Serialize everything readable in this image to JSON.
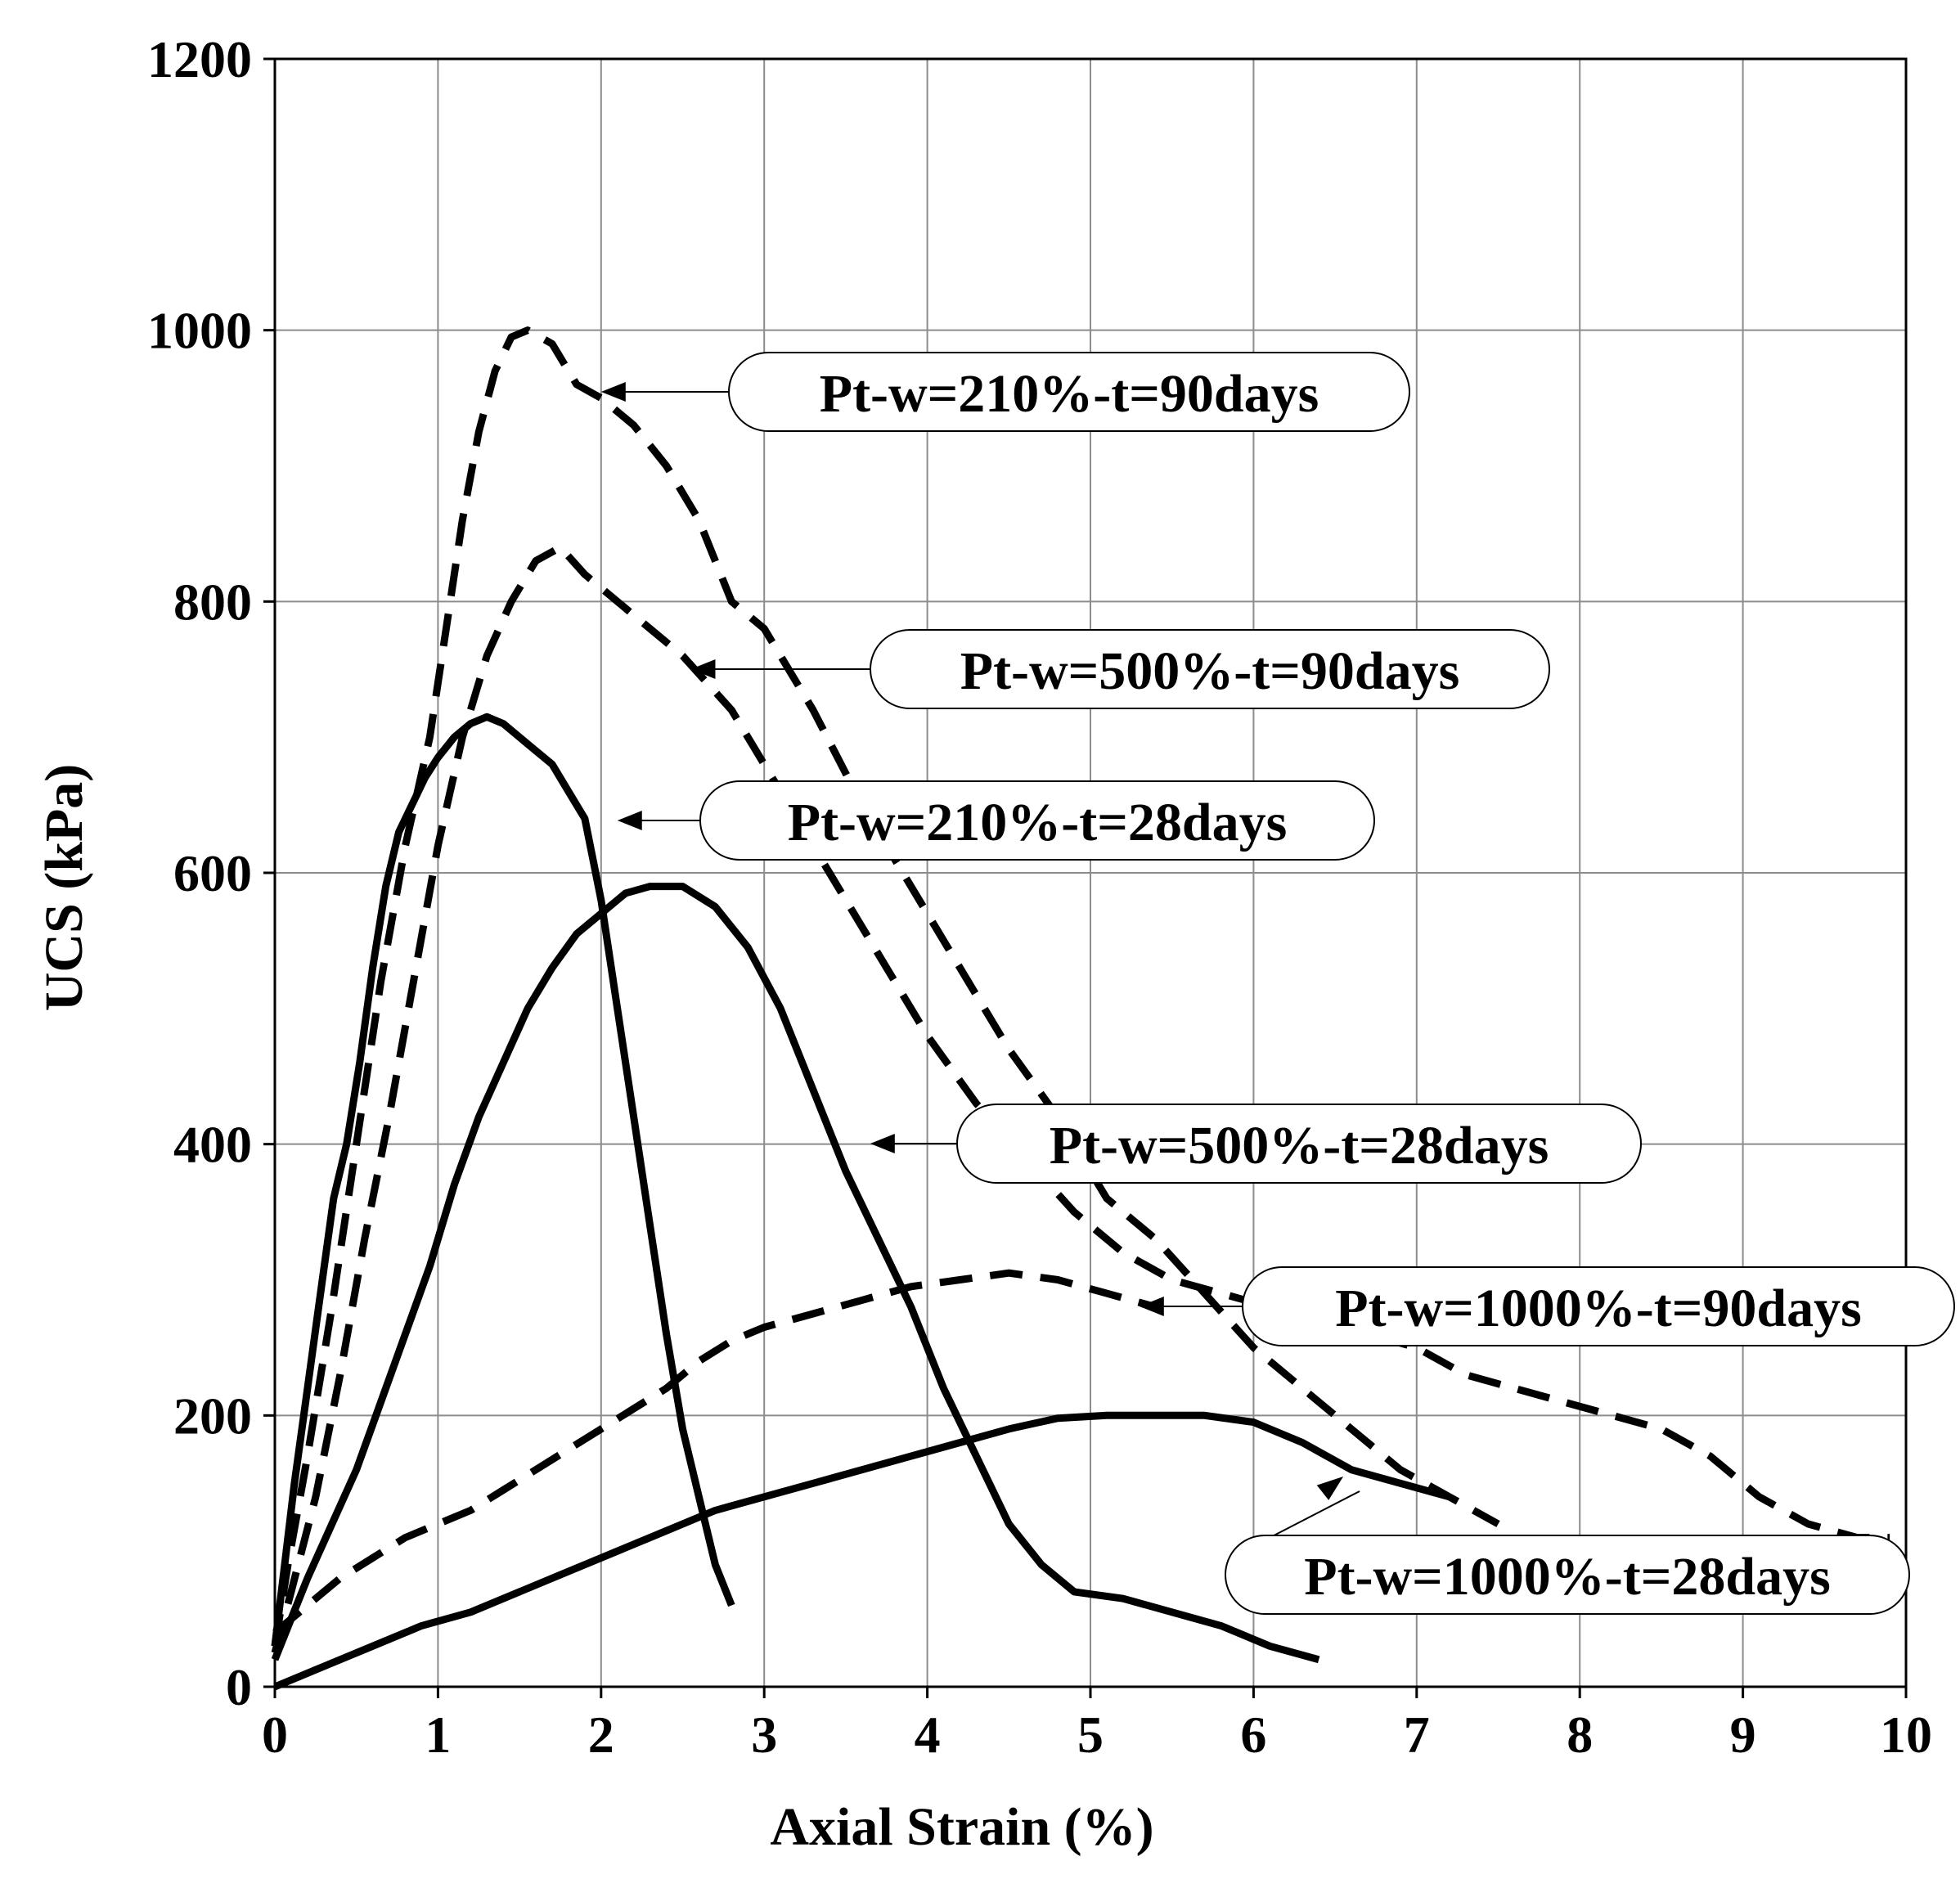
{
  "chart_data": {
    "type": "line",
    "title": "",
    "xlabel": "Axial Strain (%)",
    "ylabel": "UCS (kPa)",
    "xlim": [
      0,
      10
    ],
    "ylim": [
      0,
      1200
    ],
    "grid": true,
    "xticks": [
      "0",
      "1",
      "2",
      "3",
      "4",
      "5",
      "6",
      "7",
      "8",
      "9",
      "10"
    ],
    "yticks": [
      "0",
      "200",
      "400",
      "600",
      "800",
      "1000",
      "1200"
    ],
    "series": [
      {
        "name": "Pt-w=210%-t=90days",
        "style": "dashed",
        "x": [
          0,
          0.08,
          0.2,
          0.35,
          0.5,
          0.65,
          0.8,
          0.95,
          1.05,
          1.15,
          1.25,
          1.35,
          1.45,
          1.55,
          1.7,
          1.85,
          2.0,
          2.2,
          2.4,
          2.6,
          2.8,
          3.0,
          3.3,
          3.6,
          3.9,
          4.2,
          4.5,
          4.8,
          5.1,
          5.4,
          5.7,
          6.0,
          6.3,
          6.6,
          6.9,
          7.2,
          7.5
        ],
        "y": [
          30,
          90,
          170,
          280,
          400,
          520,
          620,
          700,
          780,
          860,
          925,
          970,
          995,
          1000,
          990,
          960,
          950,
          930,
          900,
          860,
          800,
          780,
          720,
          650,
          590,
          530,
          470,
          420,
          360,
          330,
          290,
          250,
          220,
          190,
          160,
          140,
          120
        ]
      },
      {
        "name": "Pt-w=500%-t=90days",
        "style": "dashed",
        "x": [
          0,
          0.1,
          0.25,
          0.4,
          0.55,
          0.7,
          0.85,
          1.0,
          1.15,
          1.3,
          1.45,
          1.6,
          1.75,
          1.9,
          2.1,
          2.3,
          2.5,
          2.8,
          3.1,
          3.4,
          3.7,
          4.0,
          4.3,
          4.6,
          4.9,
          5.2,
          5.5,
          5.8,
          6.1,
          6.4,
          6.7,
          7.0,
          7.3,
          7.6,
          7.9,
          8.2,
          8.5,
          8.8,
          9.1,
          9.4,
          9.7,
          9.9
        ],
        "y": [
          25,
          70,
          140,
          230,
          330,
          420,
          520,
          620,
          700,
          760,
          800,
          830,
          840,
          820,
          800,
          780,
          760,
          720,
          660,
          600,
          540,
          480,
          430,
          390,
          350,
          320,
          300,
          290,
          280,
          270,
          260,
          250,
          230,
          220,
          210,
          200,
          190,
          170,
          140,
          120,
          110,
          110
        ]
      },
      {
        "name": "Pt-w=210%-t=28days",
        "style": "solid",
        "x": [
          0,
          0.05,
          0.12,
          0.2,
          0.28,
          0.36,
          0.44,
          0.52,
          0.6,
          0.68,
          0.76,
          0.84,
          0.92,
          1.0,
          1.1,
          1.2,
          1.3,
          1.4,
          1.5,
          1.6,
          1.7,
          1.8,
          1.9,
          2.0,
          2.1,
          2.2,
          2.3,
          2.4,
          2.5,
          2.6,
          2.7,
          2.8
        ],
        "y": [
          30,
          80,
          150,
          220,
          290,
          360,
          400,
          460,
          530,
          590,
          630,
          650,
          670,
          685,
          700,
          710,
          715,
          710,
          700,
          690,
          680,
          660,
          640,
          580,
          500,
          420,
          340,
          260,
          190,
          140,
          90,
          60
        ]
      },
      {
        "name": "Pt-w=500%-t=28days",
        "style": "solid",
        "x": [
          0,
          0.1,
          0.2,
          0.35,
          0.5,
          0.65,
          0.8,
          0.95,
          1.1,
          1.25,
          1.4,
          1.55,
          1.7,
          1.85,
          2.0,
          2.15,
          2.3,
          2.5,
          2.7,
          2.9,
          3.1,
          3.3,
          3.5,
          3.7,
          3.9,
          4.1,
          4.3,
          4.5,
          4.7,
          4.9,
          5.2,
          5.5,
          5.8,
          6.1,
          6.4
        ],
        "y": [
          20,
          50,
          80,
          120,
          160,
          210,
          260,
          310,
          370,
          420,
          460,
          500,
          530,
          555,
          570,
          585,
          590,
          590,
          575,
          545,
          500,
          440,
          380,
          330,
          280,
          220,
          170,
          120,
          90,
          70,
          65,
          55,
          45,
          30,
          20
        ]
      },
      {
        "name": "Pt-w=1000%-t=90days",
        "style": "dashed",
        "x": [
          0,
          0.2,
          0.4,
          0.6,
          0.8,
          1.0,
          1.2,
          1.4,
          1.6,
          1.8,
          2.0,
          2.2,
          2.4,
          2.6,
          2.8,
          3.0,
          3.3,
          3.6,
          3.9,
          4.2,
          4.5,
          4.8,
          5.1,
          5.4
        ],
        "y": [
          40,
          60,
          80,
          95,
          110,
          120,
          130,
          145,
          160,
          175,
          190,
          205,
          220,
          240,
          255,
          265,
          275,
          285,
          295,
          300,
          305,
          300,
          290,
          280
        ]
      },
      {
        "name": "Pt-w=1000%-t=28days",
        "style": "solid",
        "x": [
          0,
          0.3,
          0.6,
          0.9,
          1.2,
          1.5,
          1.8,
          2.1,
          2.4,
          2.7,
          3.0,
          3.3,
          3.6,
          3.9,
          4.2,
          4.5,
          4.8,
          5.1,
          5.4,
          5.7,
          6.0,
          6.3,
          6.6,
          6.9,
          7.2
        ],
        "y": [
          0,
          15,
          30,
          45,
          55,
          70,
          85,
          100,
          115,
          130,
          140,
          150,
          160,
          170,
          180,
          190,
          198,
          200,
          200,
          200,
          195,
          180,
          160,
          150,
          140
        ]
      }
    ],
    "annotations": [
      {
        "text": "Pt-w=210%-t=90days",
        "target_x": 2.0,
        "target_y": 955
      },
      {
        "text": "Pt-w=500%-t=90days",
        "target_x": 2.55,
        "target_y": 752
      },
      {
        "text": "Pt-w=210%-t=28days",
        "target_x": 2.1,
        "target_y": 640
      },
      {
        "text": "Pt-w=500%-t=28days",
        "target_x": 3.65,
        "target_y": 398
      },
      {
        "text": "Pt-w=1000%-t=90days",
        "target_x": 5.3,
        "target_y": 285
      },
      {
        "text": "Pt-w=1000%-t=28days",
        "target_x": 6.55,
        "target_y": 155
      }
    ]
  }
}
